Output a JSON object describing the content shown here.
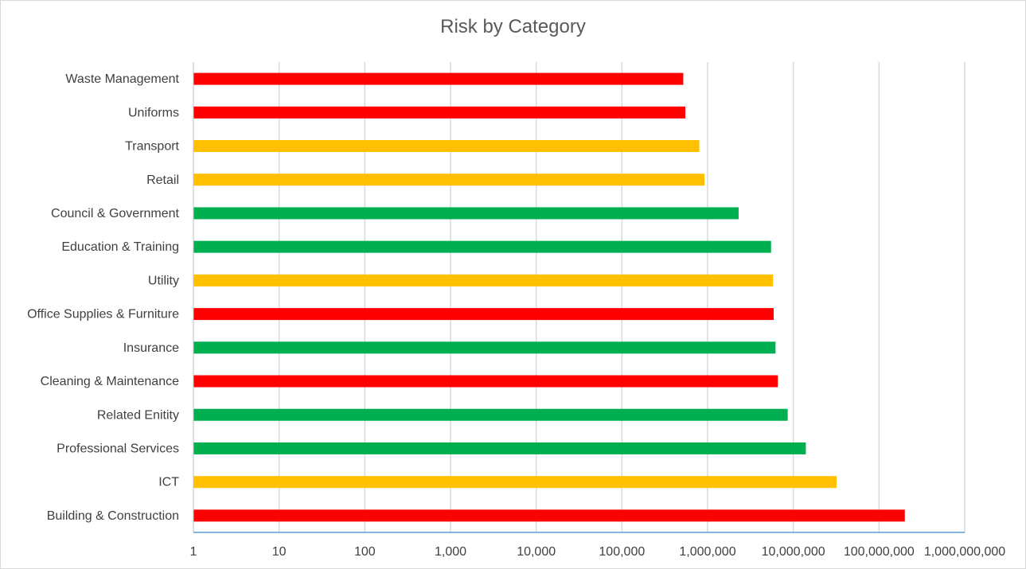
{
  "chart_data": {
    "type": "bar",
    "orientation": "horizontal",
    "title": "Risk by Category",
    "xscale": "log",
    "xlim": [
      1,
      1000000000
    ],
    "grid": true,
    "legend": "none",
    "xticks": [
      "1",
      "10",
      "100",
      "1,000",
      "10,000",
      "100,000",
      "1,000,000",
      "10,000,000",
      "100,000,000",
      "1,000,000,000"
    ],
    "colors": {
      "red": "#ff0000",
      "amber": "#ffc000",
      "green": "#00b050"
    },
    "categories": [
      "Waste Management",
      "Uniforms",
      "Transport",
      "Retail",
      "Council & Government",
      "Education & Training",
      "Utility",
      "Office Supplies & Furniture",
      "Insurance",
      "Cleaning & Maintenance",
      "Related Enitity",
      "Professional Services",
      "ICT",
      "Building & Construction"
    ],
    "values": [
      520000,
      550000,
      800000,
      920000,
      2300000,
      5500000,
      5800000,
      5900000,
      6200000,
      6600000,
      8600000,
      14000000,
      32000000,
      200000000
    ],
    "bar_colors": [
      "#ff0000",
      "#ff0000",
      "#ffc000",
      "#ffc000",
      "#00b050",
      "#00b050",
      "#ffc000",
      "#ff0000",
      "#00b050",
      "#ff0000",
      "#00b050",
      "#00b050",
      "#ffc000",
      "#ff0000"
    ]
  }
}
